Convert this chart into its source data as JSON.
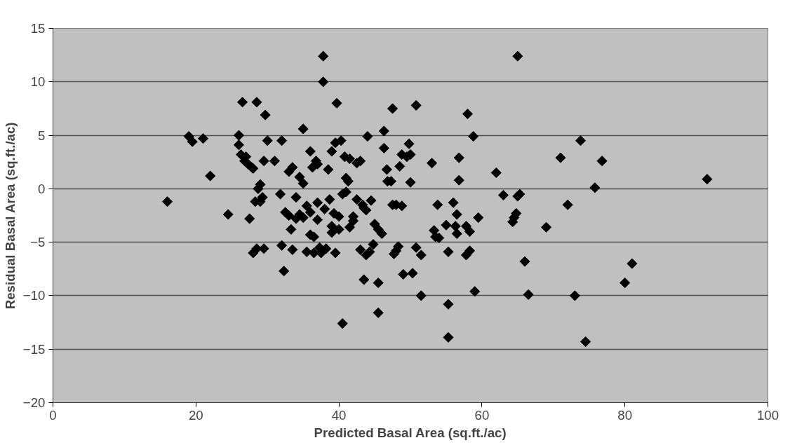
{
  "chart_data": {
    "type": "scatter",
    "xlabel": "Predicted Basal Area (sq.ft./ac)",
    "ylabel": "Residual Basal Area (sq.ft./ac)",
    "xlim": [
      0,
      100
    ],
    "xticks": [
      0,
      20,
      40,
      60,
      80,
      100
    ],
    "ylim": [
      -20,
      15
    ],
    "yticks": [
      -20,
      -15,
      -10,
      -5,
      0,
      5,
      10,
      15
    ],
    "grid": "y",
    "marker": "diamond",
    "series": [
      {
        "color": "#000000",
        "x": [
          16,
          19,
          19.5,
          21,
          22,
          24.5,
          26,
          26,
          26.3,
          26.5,
          26.8,
          27,
          27.3,
          27.5,
          27.8,
          28,
          28,
          28.3,
          28.5,
          28.7,
          28.5,
          29,
          29,
          29.3,
          29.5,
          29.7,
          29.5,
          30,
          31,
          31.8,
          32,
          32,
          32.3,
          32.5,
          33,
          33,
          33.3,
          33.5,
          33.5,
          34,
          34,
          34.5,
          34.5,
          35,
          35,
          35,
          35.5,
          35.5,
          36,
          36,
          36,
          36.3,
          36.5,
          36.5,
          36.8,
          37,
          37,
          37,
          37.3,
          37.5,
          37.8,
          37.8,
          38,
          38.2,
          38.5,
          38.7,
          39,
          39,
          39,
          39.3,
          39.5,
          39.5,
          39.7,
          40,
          40,
          40.3,
          40.5,
          40.5,
          40.8,
          41,
          41,
          41.3,
          41.5,
          41.5,
          42,
          42,
          42.5,
          42.5,
          43,
          43,
          43.3,
          43.5,
          43.5,
          43.8,
          43.8,
          44,
          44.3,
          44.5,
          44.8,
          45,
          45.5,
          45.5,
          45.5,
          46,
          46.3,
          46.3,
          46.7,
          46.8,
          47.3,
          47.5,
          47.5,
          47.7,
          48,
          48,
          48.3,
          48.5,
          48.8,
          48.8,
          49,
          49.5,
          49.8,
          50,
          50,
          50.3,
          50.8,
          50.8,
          51.5,
          51.5,
          53,
          53.3,
          53.5,
          53.8,
          54,
          55,
          55.3,
          55.3,
          55.3,
          56,
          56.3,
          56.5,
          56.5,
          56.8,
          56.8,
          57.8,
          57.8,
          58,
          58.3,
          58.3,
          58.8,
          59,
          59.5,
          62,
          63,
          64.3,
          64.5,
          64.8,
          65,
          65,
          65.3,
          66,
          66.5,
          69,
          71,
          72,
          73,
          73.8,
          74.5,
          75.8,
          76.8,
          80,
          81,
          91.5
        ],
        "values": [
          -1.2,
          4.9,
          4.4,
          4.7,
          1.2,
          -2.4,
          5,
          4.1,
          3.2,
          8.1,
          2.6,
          3,
          2.3,
          -2.8,
          2,
          1.9,
          -6,
          -1.2,
          8.1,
          0,
          -5.6,
          0.4,
          -1.2,
          -0.8,
          2.6,
          6.9,
          -5.6,
          4.5,
          2.6,
          -0.5,
          4.5,
          -5.3,
          -7.7,
          -2.2,
          -2.5,
          1.6,
          -3.8,
          -5.7,
          2,
          -2.8,
          -0.8,
          1.1,
          -2.4,
          5.6,
          -2.7,
          0.5,
          -5.9,
          -1.6,
          -2.2,
          3.5,
          -4.3,
          2,
          -6,
          -4.5,
          2.6,
          -2.9,
          -1.3,
          2.3,
          -5.5,
          -6,
          12.4,
          10,
          -1.9,
          -5.6,
          1.8,
          -1,
          3.5,
          -3.5,
          -4.1,
          -2.3,
          -6,
          4.3,
          8,
          -2.6,
          -3.8,
          4.5,
          -12.6,
          -0.5,
          3,
          1,
          -0.3,
          0.7,
          2.8,
          -3.6,
          -2.6,
          -3,
          -1,
          2.4,
          -5.7,
          2.6,
          -1.5,
          -1.8,
          -8.5,
          -6.2,
          -2,
          4.9,
          -5.9,
          -1.1,
          -5.2,
          -3.3,
          -8.8,
          -11.6,
          -3.8,
          -4.2,
          3.8,
          5.4,
          1.8,
          0.7,
          0.7,
          7.5,
          -1.5,
          -6.1,
          -1.5,
          -5.8,
          -5.4,
          2.1,
          3.2,
          -1.6,
          -8,
          3,
          4.2,
          0.6,
          3.2,
          -7.9,
          -5.5,
          7.8,
          -6.2,
          -10,
          2.4,
          -3.9,
          -4.5,
          -1.5,
          -4.6,
          -3.4,
          -5.9,
          -10.8,
          -13.9,
          -1.3,
          -3.5,
          -2.4,
          -4.2,
          0.8,
          2.9,
          -3.5,
          -6.2,
          7,
          -4,
          -5.8,
          4.9,
          -9.6,
          -2.7,
          1.5,
          -0.6,
          -3.1,
          -2.7,
          -2.3,
          12.4,
          -0.7,
          -0.5,
          -6.8,
          -9.9,
          -3.6,
          2.9,
          -1.5,
          -10,
          4.5,
          -14.3,
          0.1,
          2.6,
          -8.8,
          -7,
          0.9
        ]
      }
    ]
  }
}
